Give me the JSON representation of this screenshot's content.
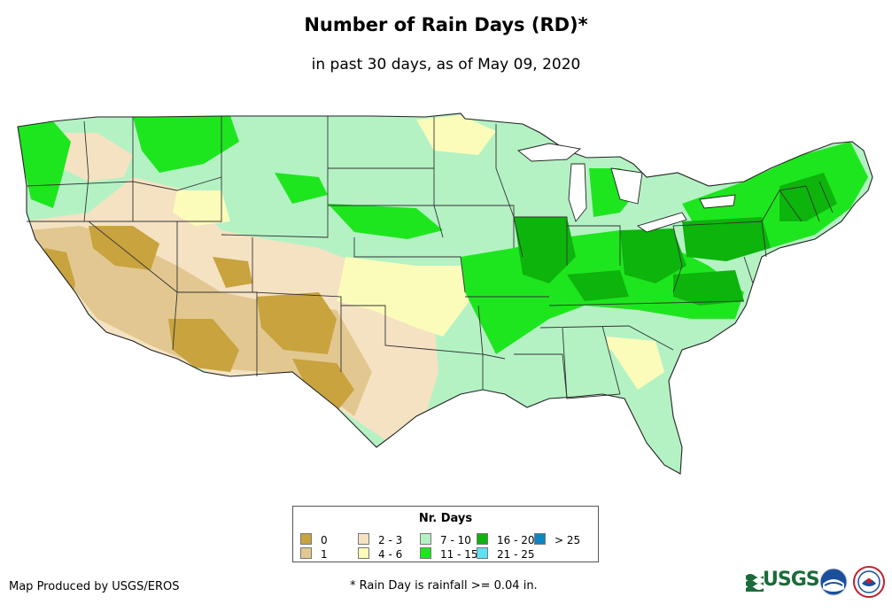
{
  "title": "Number of Rain Days (RD)*",
  "subtitle": "in past 30 days, as of May 09, 2020",
  "legend": {
    "title": "Nr. Days",
    "items": [
      {
        "label": "0",
        "color": "#c8a33e"
      },
      {
        "label": "1",
        "color": "#e2c890"
      },
      {
        "label": "2 - 3",
        "color": "#f5e2c2"
      },
      {
        "label": "4 - 6",
        "color": "#fcfcba"
      },
      {
        "label": "7 - 10",
        "color": "#b4f2c4"
      },
      {
        "label": "11 - 15",
        "color": "#1ee61e"
      },
      {
        "label": "16 - 20",
        "color": "#0cb40c"
      },
      {
        "label": "21 - 25",
        "color": "#5ce2f4"
      },
      {
        "label": "> 25",
        "color": "#0c86c4"
      }
    ]
  },
  "credit": "Map Produced by USGS/EROS",
  "footnote": "* Rain Day is rainfall >= 0.04 in.",
  "logos": {
    "usgs": "USGS",
    "noaa": "noaa-logo",
    "nws": "national-weather-service-logo"
  },
  "icons": {
    "usgs_mark": "usgs-wave-icon"
  }
}
